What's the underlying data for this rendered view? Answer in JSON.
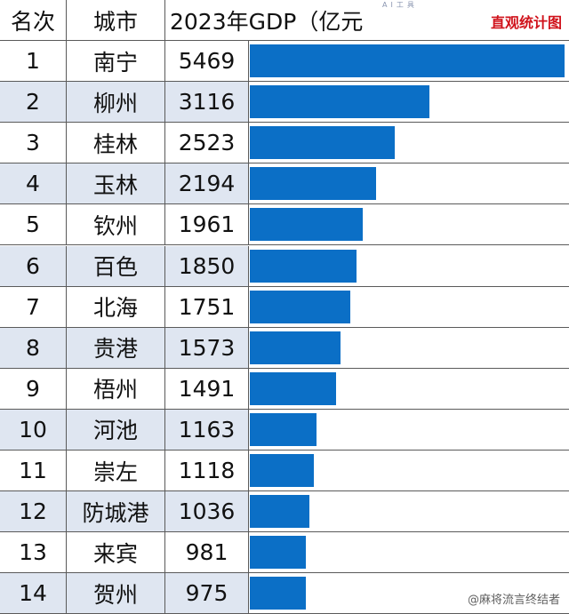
{
  "toolbar": {
    "ai_label": "AI工具"
  },
  "watermark": {
    "top": "直观统计图",
    "bottom": "@麻将流言终结者"
  },
  "header": {
    "rank": "名次",
    "city": "城市",
    "gdp": "2023年GDP（亿元"
  },
  "chart_data": {
    "type": "table",
    "title": "2023年GDP（亿元",
    "columns": [
      "名次",
      "城市",
      "2023年GDP（亿元"
    ],
    "rows": [
      {
        "rank": "1",
        "city": "南宁",
        "gdp": 5469
      },
      {
        "rank": "2",
        "city": "柳州",
        "gdp": 3116
      },
      {
        "rank": "3",
        "city": "桂林",
        "gdp": 2523
      },
      {
        "rank": "4",
        "city": "玉林",
        "gdp": 2194
      },
      {
        "rank": "5",
        "city": "钦州",
        "gdp": 1961
      },
      {
        "rank": "6",
        "city": "百色",
        "gdp": 1850
      },
      {
        "rank": "7",
        "city": "北海",
        "gdp": 1751
      },
      {
        "rank": "8",
        "city": "贵港",
        "gdp": 1573
      },
      {
        "rank": "9",
        "city": "梧州",
        "gdp": 1491
      },
      {
        "rank": "10",
        "city": "河池",
        "gdp": 1163
      },
      {
        "rank": "11",
        "city": "崇左",
        "gdp": 1118
      },
      {
        "rank": "12",
        "city": "防城港",
        "gdp": 1036
      },
      {
        "rank": "13",
        "city": "来宾",
        "gdp": 981
      },
      {
        "rank": "14",
        "city": "贺州",
        "gdp": 975
      }
    ],
    "bar_color": "#0b6fc6",
    "shade_color": "#dfe6f1"
  }
}
